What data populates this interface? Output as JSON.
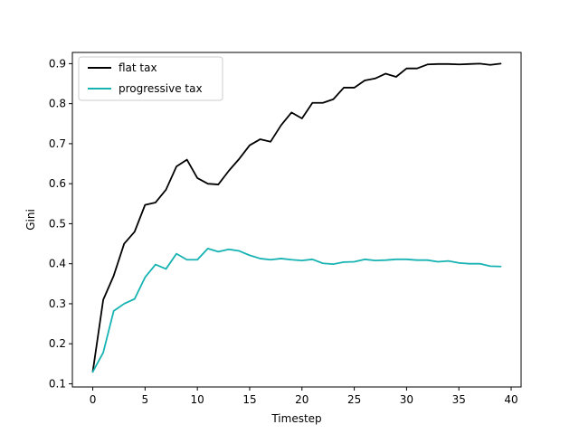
{
  "chart_data": {
    "type": "line",
    "title": "",
    "xlabel": "Timestep",
    "ylabel": "Gini",
    "xlim": [
      -1.95,
      40.95
    ],
    "ylim": [
      0.092,
      0.928
    ],
    "xticks": [
      0,
      5,
      10,
      15,
      20,
      25,
      30,
      35,
      40
    ],
    "yticks": [
      0.1,
      0.2,
      0.3,
      0.4,
      0.5,
      0.6,
      0.7,
      0.8,
      0.9
    ],
    "grid": false,
    "legend_position": "top-left",
    "x": [
      0,
      1,
      2,
      3,
      4,
      5,
      6,
      7,
      8,
      9,
      10,
      11,
      12,
      13,
      14,
      15,
      16,
      17,
      18,
      19,
      20,
      21,
      22,
      23,
      24,
      25,
      26,
      27,
      28,
      29,
      30,
      31,
      32,
      33,
      34,
      35,
      36,
      37,
      38,
      39
    ],
    "series": [
      {
        "name": "flat tax",
        "color": "#000000",
        "values": [
          0.13,
          0.31,
          0.37,
          0.45,
          0.48,
          0.547,
          0.553,
          0.585,
          0.643,
          0.66,
          0.614,
          0.6,
          0.598,
          0.632,
          0.662,
          0.696,
          0.711,
          0.705,
          0.746,
          0.778,
          0.763,
          0.802,
          0.802,
          0.811,
          0.84,
          0.84,
          0.858,
          0.863,
          0.875,
          0.867,
          0.888,
          0.888,
          0.898,
          0.899,
          0.899,
          0.898,
          0.899,
          0.9,
          0.897,
          0.9
        ]
      },
      {
        "name": "progressive tax",
        "color": "#17b3b3",
        "values": [
          0.13,
          0.178,
          0.282,
          0.3,
          0.312,
          0.366,
          0.398,
          0.387,
          0.425,
          0.41,
          0.41,
          0.438,
          0.43,
          0.436,
          0.432,
          0.421,
          0.413,
          0.41,
          0.413,
          0.41,
          0.408,
          0.411,
          0.401,
          0.399,
          0.404,
          0.405,
          0.411,
          0.408,
          0.409,
          0.411,
          0.411,
          0.409,
          0.409,
          0.405,
          0.407,
          0.402,
          0.4,
          0.4,
          0.394,
          0.393
        ]
      }
    ]
  }
}
